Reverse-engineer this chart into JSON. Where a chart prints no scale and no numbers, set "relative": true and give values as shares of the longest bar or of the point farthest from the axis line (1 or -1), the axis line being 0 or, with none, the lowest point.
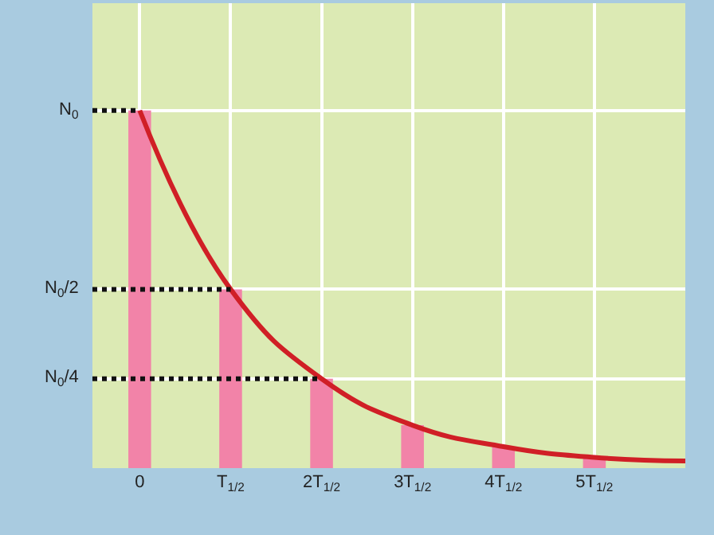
{
  "chart_data": {
    "type": "bar",
    "relative": true,
    "categories": [
      "0",
      "T$_{1/2}$",
      "2T$_{1/2}$",
      "3T$_{1/2}$",
      "4T$_{1/2}$",
      "5T$_{1/2}$",
      null
    ],
    "series": [
      {
        "color": "#f283a8",
        "values": [
          1,
          0.5,
          0.25,
          0.12,
          0.06,
          0.03,
          null
        ]
      },
      {
        "type": "line",
        "color": "#d01f26",
        "values": [
          1,
          0.5,
          0.25,
          0.12,
          0.06,
          0.03,
          0.02
        ]
      }
    ],
    "ref_lines": [
      {
        "axis": "y",
        "value": 1,
        "label": "N$_{0}$",
        "color": "#111111",
        "line_style": "dotted"
      },
      {
        "axis": "y",
        "value": 0.5,
        "label": "N$_{0}$/2",
        "color": "#111111",
        "line_style": "dotted"
      },
      {
        "axis": "y",
        "value": 0.25,
        "label": "N$_{0}$/4",
        "color": "#111111",
        "line_style": "dotted"
      }
    ],
    "grid": true
  }
}
